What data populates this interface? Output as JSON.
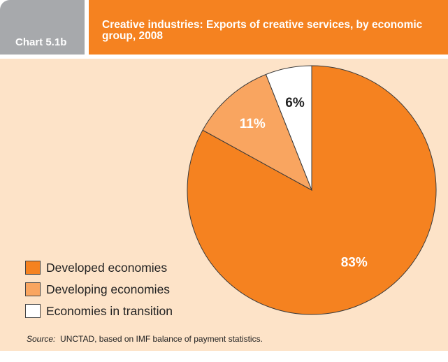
{
  "header": {
    "chart_label": "Chart 5.1b",
    "title": "Creative industries: Exports of creative services, by economic group, 2008"
  },
  "source": {
    "label": "Source:",
    "text": "UNCTAD, based on IMF balance of payment statistics."
  },
  "colors": {
    "accent": "#f58220",
    "panel": "#fde3c8",
    "header_grey": "#a7a9ac"
  },
  "chart_data": {
    "type": "pie",
    "title": "Creative industries: Exports of creative services, by economic group, 2008",
    "legend_position": "bottom-left",
    "slices": [
      {
        "label": "Developed economies",
        "value": 83,
        "display": "83%",
        "color": "#f58220"
      },
      {
        "label": "Developing economies",
        "value": 11,
        "display": "11%",
        "color": "#f9a560"
      },
      {
        "label": "Economies in transition",
        "value": 6,
        "display": "6%",
        "color": "#ffffff"
      }
    ]
  }
}
